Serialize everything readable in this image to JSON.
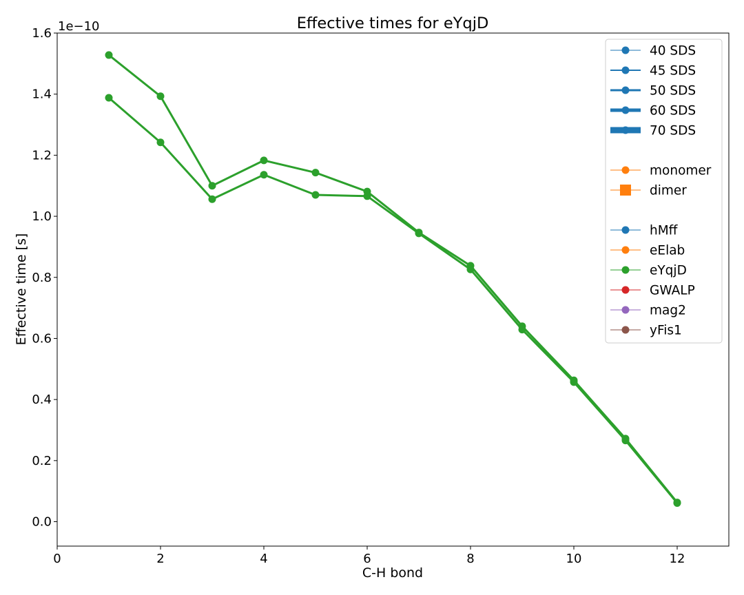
{
  "chart_data": {
    "type": "line",
    "title": "Effective times for eYqjD",
    "xlabel": "C-H bond",
    "ylabel": "Effective time [s]",
    "y_offset_label": "1e−10",
    "xlim": [
      0,
      13
    ],
    "ylim": [
      -0.08,
      1.6
    ],
    "x_ticks": [
      0,
      2,
      4,
      6,
      8,
      10,
      12
    ],
    "x_tick_labels": [
      "0",
      "2",
      "4",
      "6",
      "8",
      "10",
      "12"
    ],
    "y_ticks": [
      0.0,
      0.2,
      0.4,
      0.6,
      0.8,
      1.0,
      1.2,
      1.4,
      1.6
    ],
    "y_tick_labels": [
      "0.0",
      "0.2",
      "0.4",
      "0.6",
      "0.8",
      "1.0",
      "1.2",
      "1.4",
      "1.6"
    ],
    "grid": false,
    "legend_position": "top-right",
    "series_color": "#2ca02c",
    "series": [
      {
        "x": [
          1,
          2,
          3,
          4,
          5,
          6,
          7,
          8,
          9,
          10,
          11,
          12
        ],
        "values": [
          1.528,
          1.393,
          1.1,
          1.183,
          1.143,
          1.081,
          0.947,
          0.838,
          0.64,
          0.463,
          0.272,
          0.063
        ]
      },
      {
        "x": [
          1,
          2,
          3,
          4,
          5,
          6,
          7,
          8,
          9,
          10,
          11,
          12
        ],
        "values": [
          1.388,
          1.242,
          1.056,
          1.136,
          1.07,
          1.066,
          0.944,
          0.826,
          0.629,
          0.457,
          0.266,
          0.061
        ]
      }
    ],
    "legend": [
      {
        "label": "40 SDS",
        "color": "#1f77b4",
        "marker": "circle",
        "linewidth": 1
      },
      {
        "label": "45 SDS",
        "color": "#1f77b4",
        "marker": "circle",
        "linewidth": 2
      },
      {
        "label": "50 SDS",
        "color": "#1f77b4",
        "marker": "circle",
        "linewidth": 3
      },
      {
        "label": "60 SDS",
        "color": "#1f77b4",
        "marker": "circle",
        "linewidth": 5
      },
      {
        "label": "70 SDS",
        "color": "#1f77b4",
        "marker": "circle",
        "linewidth": 9
      },
      {
        "label": "",
        "color": "",
        "marker": "none",
        "linewidth": 0
      },
      {
        "label": "monomer",
        "color": "#ff7f0e",
        "marker": "circle",
        "linewidth": 1
      },
      {
        "label": "dimer",
        "color": "#ff7f0e",
        "marker": "square",
        "linewidth": 1
      },
      {
        "label": "",
        "color": "",
        "marker": "none",
        "linewidth": 0
      },
      {
        "label": "hMff",
        "color": "#1f77b4",
        "marker": "circle",
        "linewidth": 1
      },
      {
        "label": "eElab",
        "color": "#ff7f0e",
        "marker": "circle",
        "linewidth": 1
      },
      {
        "label": "eYqjD",
        "color": "#2ca02c",
        "marker": "circle",
        "linewidth": 1
      },
      {
        "label": "GWALP",
        "color": "#d62728",
        "marker": "circle",
        "linewidth": 1
      },
      {
        "label": "mag2",
        "color": "#9467bd",
        "marker": "circle",
        "linewidth": 1
      },
      {
        "label": "yFis1",
        "color": "#8c564b",
        "marker": "circle",
        "linewidth": 1
      }
    ]
  }
}
